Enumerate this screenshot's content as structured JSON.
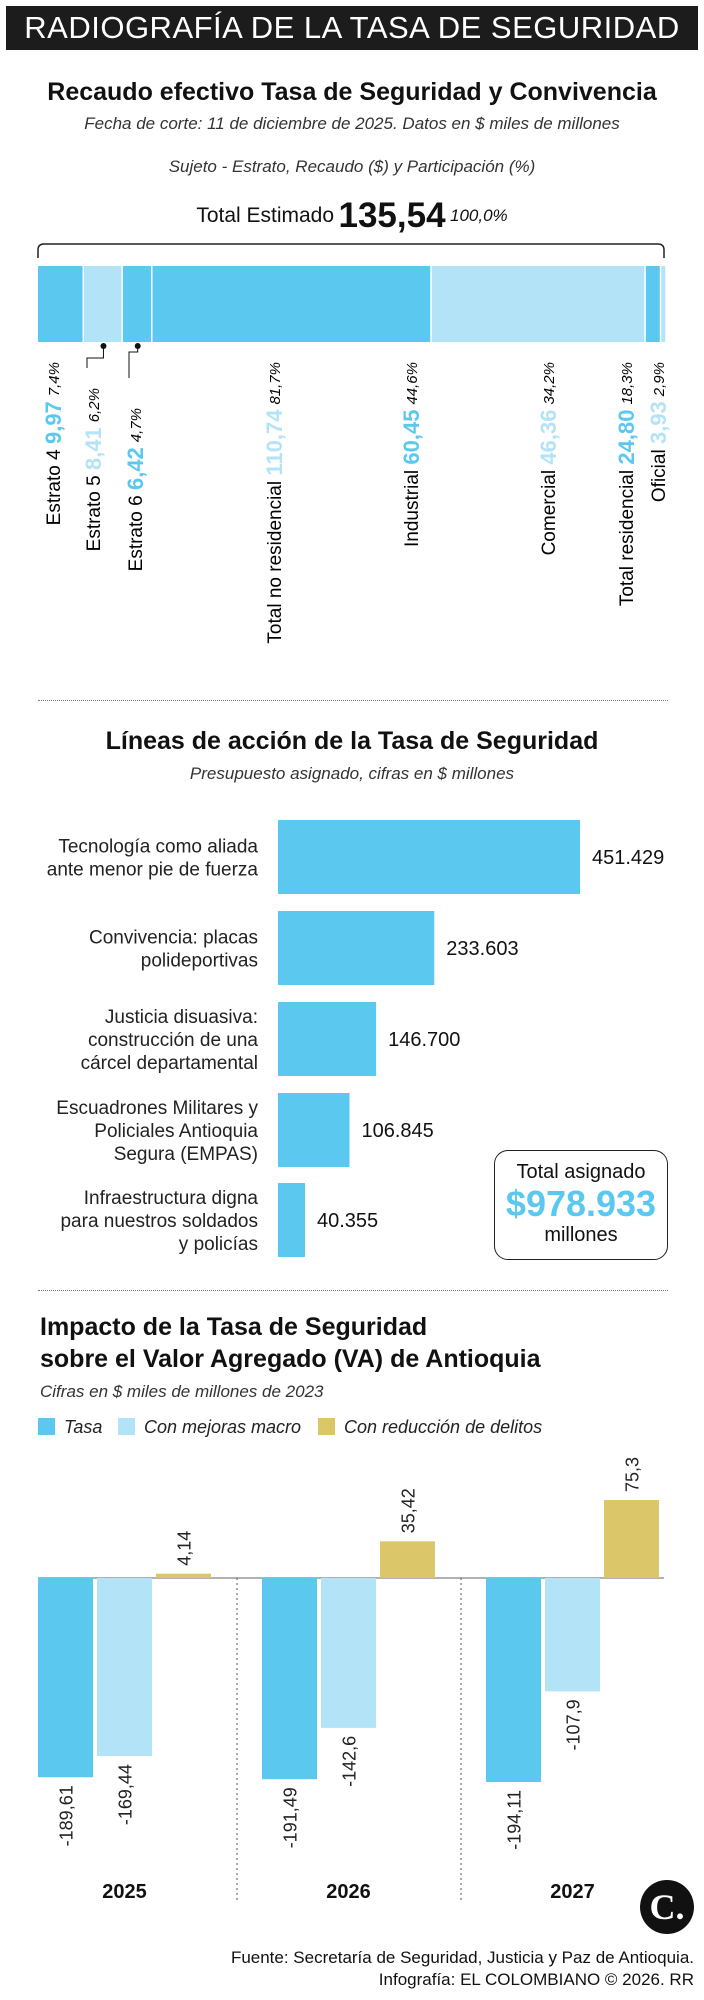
{
  "header": {
    "banner": "RADIOGRAFÍA DE LA TASA DE SEGURIDAD"
  },
  "section1": {
    "title": "Recaudo efectivo Tasa de Seguridad y Convivencia",
    "subtitle": "Fecha de corte: 11 de diciembre de 2025. Datos en $ miles de millones",
    "legend_note": "Sujeto - Estrato, Recaudo ($) y Participación (%)",
    "total_label": "Total Estimado",
    "total_value": "135,54",
    "total_pct": "100,0%"
  },
  "section2": {
    "title": "Líneas de acción de la Tasa de Seguridad",
    "subtitle": "Presupuesto asignado, cifras en $ millones",
    "total_box": {
      "label": "Total asignado",
      "value": "$978.933",
      "unit": "millones"
    }
  },
  "section3": {
    "title_line1": "Impacto de la Tasa de Seguridad",
    "title_line2": "sobre el Valor Agregado (VA) de Antioquia",
    "subtitle": "Cifras en $ miles de millones de 2023"
  },
  "footer": {
    "source": "Fuente: Secretaría de Seguridad, Justicia y Paz de Antioquia.",
    "credit": "Infografía: EL COLOMBIANO © 2026. RR",
    "logo": "C."
  },
  "colors": {
    "blue": "#5bc8ef",
    "light_blue": "#b3e3f7",
    "gold": "#dcc66a",
    "dark": "#1c1c1c"
  },
  "chart_data": [
    {
      "type": "bar",
      "orientation": "stacked-horizontal",
      "total": {
        "label": "Total Estimado",
        "value": 135.54,
        "pct": 100.0
      },
      "segments": [
        {
          "name": "Estrato 4",
          "value": 9.97,
          "value_label": "9,97",
          "pct_label": "7,4%",
          "pct": 7.4,
          "color": "#5bc8ef"
        },
        {
          "name": "Estrato 5",
          "value": 8.41,
          "value_label": "8,41",
          "pct_label": "6,2%",
          "pct": 6.2,
          "color": "#b3e3f7"
        },
        {
          "name": "Estrato 6",
          "value": 6.42,
          "value_label": "6,42",
          "pct_label": "4,7%",
          "pct": 4.7,
          "color": "#5bc8ef"
        },
        {
          "name": "Total no residencial",
          "value": 110.74,
          "value_label": "110,74",
          "pct_label": "81,7%",
          "pct": 81.7,
          "color": "#b3e3f7"
        },
        {
          "name": "Industrial",
          "value": 60.45,
          "value_label": "60,45",
          "pct_label": "44,6%",
          "pct": 44.6,
          "color": "#5bc8ef"
        },
        {
          "name": "Comercial",
          "value": 46.36,
          "value_label": "46,36",
          "pct_label": "34,2%",
          "pct": 34.2,
          "color": "#b3e3f7"
        },
        {
          "name": "Total residencial",
          "value": 24.8,
          "value_label": "24,80",
          "pct_label": "18,3%",
          "pct": 18.3,
          "color": "#5bc8ef"
        },
        {
          "name": "Oficial",
          "value": 3.93,
          "value_label": "3,93",
          "pct_label": "2,9%",
          "pct": 2.9,
          "color": "#b3e3f7"
        }
      ]
    },
    {
      "type": "bar",
      "orientation": "horizontal",
      "categories": [
        [
          "Tecnología como aliada",
          "ante menor pie de fuerza"
        ],
        [
          "Convivencia: placas",
          "polideportivas"
        ],
        [
          "Justicia disuasiva:",
          "construcción de una",
          "cárcel departamental"
        ],
        [
          "Escuadrones Militares y",
          "Policiales Antioquia",
          "Segura (EMPAS)"
        ],
        [
          "Infraestructura digna",
          "para nuestros soldados",
          "y policías"
        ]
      ],
      "values": [
        451429,
        233603,
        146700,
        106845,
        40355
      ],
      "value_labels": [
        "451.429",
        "233.603",
        "146.700",
        "106.845",
        "40.355"
      ],
      "xlim": [
        0,
        451429
      ]
    },
    {
      "type": "bar",
      "orientation": "vertical-grouped",
      "categories": [
        "2025",
        "2026",
        "2027"
      ],
      "series": [
        {
          "name": "Tasa",
          "color": "#5bc8ef",
          "values": [
            -189.61,
            -191.49,
            -194.11
          ],
          "labels": [
            "-189,61",
            "-191,49",
            "-194,11"
          ]
        },
        {
          "name": "Con mejoras macro",
          "color": "#b3e3f7",
          "values": [
            -169.44,
            -142.6,
            -107.9
          ],
          "labels": [
            "-169,44",
            "-142,6",
            "-107,9"
          ]
        },
        {
          "name": "Con reducción de delitos",
          "color": "#dcc66a",
          "values": [
            4.14,
            35.42,
            75.3
          ],
          "labels": [
            "4,14",
            "35,42",
            "75,3"
          ]
        }
      ],
      "ylim": [
        -200,
        80
      ],
      "legend": "top-left"
    }
  ]
}
